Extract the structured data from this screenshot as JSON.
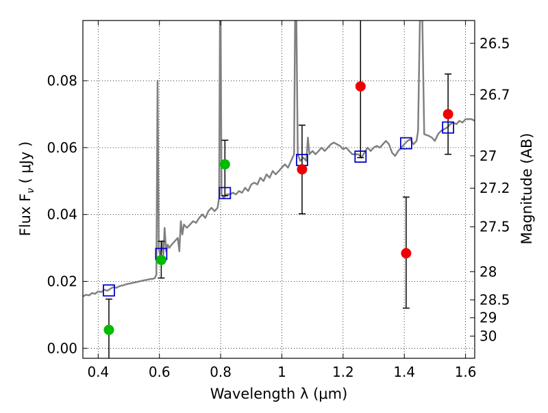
{
  "chart_data": {
    "type": "scatter",
    "xlabel": "Wavelength  λ (μm)",
    "ylabel": "Flux  F",
    "ylabel_sub": "ν",
    "ylabel_unit": " ( μJy )",
    "y2label": "Magnitude (AB)",
    "xlim": [
      0.35,
      1.63
    ],
    "ylim": [
      -0.003,
      0.098
    ],
    "grid": true,
    "x_ticks": [
      {
        "value": 0.4,
        "label": "0.4"
      },
      {
        "value": 0.6,
        "label": "0.6"
      },
      {
        "value": 0.8,
        "label": "0.8"
      },
      {
        "value": 1.0,
        "label": "1"
      },
      {
        "value": 1.2,
        "label": "1.2"
      },
      {
        "value": 1.4,
        "label": "1.4"
      },
      {
        "value": 1.6,
        "label": "1.6"
      }
    ],
    "y_ticks": [
      {
        "value": 0.0,
        "label": "0.00"
      },
      {
        "value": 0.02,
        "label": "0.02"
      },
      {
        "value": 0.04,
        "label": "0.04"
      },
      {
        "value": 0.06,
        "label": "0.06"
      },
      {
        "value": 0.08,
        "label": "0.08"
      }
    ],
    "y2_ticks": [
      {
        "mag": 26.5,
        "label": "26.5"
      },
      {
        "mag": 26.7,
        "label": "26.7"
      },
      {
        "mag": 27.0,
        "label": "27"
      },
      {
        "mag": 27.2,
        "label": "27.2"
      },
      {
        "mag": 27.5,
        "label": "27.5"
      },
      {
        "mag": 28.0,
        "label": "28"
      },
      {
        "mag": 28.5,
        "label": "28.5"
      },
      {
        "mag": 29.0,
        "label": "29"
      },
      {
        "mag": 30.0,
        "label": "30"
      }
    ],
    "model_spectrum": {
      "color": "#808080",
      "points": [
        [
          0.35,
          0.0155
        ],
        [
          0.36,
          0.016
        ],
        [
          0.37,
          0.0158
        ],
        [
          0.38,
          0.0165
        ],
        [
          0.39,
          0.0163
        ],
        [
          0.4,
          0.017
        ],
        [
          0.41,
          0.0168
        ],
        [
          0.42,
          0.0175
        ],
        [
          0.43,
          0.0172
        ],
        [
          0.44,
          0.0178
        ],
        [
          0.45,
          0.0183
        ],
        [
          0.46,
          0.0181
        ],
        [
          0.47,
          0.0186
        ],
        [
          0.48,
          0.0188
        ],
        [
          0.49,
          0.0191
        ],
        [
          0.5,
          0.0193
        ],
        [
          0.51,
          0.0195
        ],
        [
          0.52,
          0.0197
        ],
        [
          0.53,
          0.0199
        ],
        [
          0.54,
          0.0201
        ],
        [
          0.55,
          0.0203
        ],
        [
          0.56,
          0.0205
        ],
        [
          0.57,
          0.0207
        ],
        [
          0.58,
          0.0208
        ],
        [
          0.585,
          0.021
        ],
        [
          0.59,
          0.022
        ],
        [
          0.594,
          0.08
        ],
        [
          0.598,
          0.03
        ],
        [
          0.603,
          0.027
        ],
        [
          0.608,
          0.032
        ],
        [
          0.613,
          0.028
        ],
        [
          0.617,
          0.036
        ],
        [
          0.622,
          0.029
        ],
        [
          0.627,
          0.031
        ],
        [
          0.632,
          0.03
        ],
        [
          0.64,
          0.031
        ],
        [
          0.65,
          0.032
        ],
        [
          0.66,
          0.033
        ],
        [
          0.665,
          0.029
        ],
        [
          0.67,
          0.038
        ],
        [
          0.675,
          0.034
        ],
        [
          0.68,
          0.037
        ],
        [
          0.69,
          0.036
        ],
        [
          0.7,
          0.037
        ],
        [
          0.71,
          0.038
        ],
        [
          0.72,
          0.0375
        ],
        [
          0.73,
          0.039
        ],
        [
          0.74,
          0.04
        ],
        [
          0.75,
          0.039
        ],
        [
          0.76,
          0.041
        ],
        [
          0.77,
          0.042
        ],
        [
          0.78,
          0.041
        ],
        [
          0.79,
          0.042
        ],
        [
          0.795,
          0.045
        ],
        [
          0.799,
          0.12
        ],
        [
          0.803,
          0.046
        ],
        [
          0.81,
          0.045
        ],
        [
          0.82,
          0.046
        ],
        [
          0.83,
          0.046
        ],
        [
          0.84,
          0.0465
        ],
        [
          0.85,
          0.046
        ],
        [
          0.86,
          0.047
        ],
        [
          0.87,
          0.0465
        ],
        [
          0.88,
          0.048
        ],
        [
          0.89,
          0.047
        ],
        [
          0.9,
          0.049
        ],
        [
          0.91,
          0.0495
        ],
        [
          0.92,
          0.049
        ],
        [
          0.93,
          0.051
        ],
        [
          0.94,
          0.05
        ],
        [
          0.95,
          0.052
        ],
        [
          0.96,
          0.051
        ],
        [
          0.97,
          0.053
        ],
        [
          0.98,
          0.052
        ],
        [
          0.99,
          0.053
        ],
        [
          1.0,
          0.054
        ],
        [
          1.01,
          0.055
        ],
        [
          1.02,
          0.054
        ],
        [
          1.03,
          0.056
        ],
        [
          1.04,
          0.058
        ],
        [
          1.045,
          0.12
        ],
        [
          1.052,
          0.058
        ],
        [
          1.06,
          0.056
        ],
        [
          1.07,
          0.057
        ],
        [
          1.08,
          0.056
        ],
        [
          1.085,
          0.063
        ],
        [
          1.09,
          0.058
        ],
        [
          1.1,
          0.059
        ],
        [
          1.11,
          0.058
        ],
        [
          1.12,
          0.059
        ],
        [
          1.13,
          0.06
        ],
        [
          1.14,
          0.059
        ],
        [
          1.15,
          0.06
        ],
        [
          1.16,
          0.061
        ],
        [
          1.17,
          0.0615
        ],
        [
          1.18,
          0.061
        ],
        [
          1.19,
          0.0605
        ],
        [
          1.2,
          0.0595
        ],
        [
          1.21,
          0.06
        ],
        [
          1.22,
          0.059
        ],
        [
          1.23,
          0.058
        ],
        [
          1.24,
          0.058
        ],
        [
          1.25,
          0.058
        ],
        [
          1.26,
          0.057
        ],
        [
          1.27,
          0.0585
        ],
        [
          1.28,
          0.06
        ],
        [
          1.29,
          0.059
        ],
        [
          1.3,
          0.06
        ],
        [
          1.31,
          0.0605
        ],
        [
          1.32,
          0.06
        ],
        [
          1.33,
          0.061
        ],
        [
          1.34,
          0.062
        ],
        [
          1.35,
          0.061
        ],
        [
          1.36,
          0.0585
        ],
        [
          1.37,
          0.0575
        ],
        [
          1.38,
          0.059
        ],
        [
          1.39,
          0.06
        ],
        [
          1.4,
          0.061
        ],
        [
          1.41,
          0.062
        ],
        [
          1.42,
          0.0625
        ],
        [
          1.43,
          0.061
        ],
        [
          1.44,
          0.062
        ],
        [
          1.445,
          0.065
        ],
        [
          1.455,
          0.12
        ],
        [
          1.465,
          0.064
        ],
        [
          1.48,
          0.0635
        ],
        [
          1.49,
          0.063
        ],
        [
          1.5,
          0.062
        ],
        [
          1.51,
          0.064
        ],
        [
          1.52,
          0.065
        ],
        [
          1.53,
          0.0655
        ],
        [
          1.54,
          0.066
        ],
        [
          1.55,
          0.067
        ],
        [
          1.56,
          0.0675
        ],
        [
          1.57,
          0.067
        ],
        [
          1.58,
          0.068
        ],
        [
          1.59,
          0.0675
        ],
        [
          1.6,
          0.0685
        ],
        [
          1.61,
          0.0685
        ],
        [
          1.62,
          0.0685
        ],
        [
          1.63,
          0.068
        ]
      ]
    },
    "model_photometry": {
      "marker": "square",
      "color": "#0000cc",
      "points": [
        {
          "x": 0.435,
          "y": 0.0173
        },
        {
          "x": 0.606,
          "y": 0.0282
        },
        {
          "x": 0.814,
          "y": 0.0464
        },
        {
          "x": 1.066,
          "y": 0.0563
        },
        {
          "x": 1.257,
          "y": 0.0573
        },
        {
          "x": 1.406,
          "y": 0.0613
        },
        {
          "x": 1.543,
          "y": 0.066
        }
      ]
    },
    "observed_green": {
      "marker": "circle",
      "color": "#00bb00",
      "points": [
        {
          "x": 0.435,
          "y": 0.0055,
          "yerr_low": 0.0055,
          "yerr_high": 0.0092,
          "lower_open": true
        },
        {
          "x": 0.606,
          "y": 0.0264,
          "yerr_low": 0.0054,
          "yerr_high": 0.0056
        },
        {
          "x": 0.814,
          "y": 0.055,
          "yerr_low": 0.0094,
          "yerr_high": 0.0072
        }
      ]
    },
    "observed_red": {
      "marker": "circle",
      "color": "#ee0000",
      "points": [
        {
          "x": 1.066,
          "y": 0.0535,
          "yerr_low": 0.0133,
          "yerr_high": 0.0132
        },
        {
          "x": 1.257,
          "y": 0.0783,
          "yerr_low": 0.0213,
          "yerr_high": 0.02,
          "upper_open": true
        },
        {
          "x": 1.406,
          "y": 0.0284,
          "yerr_low": 0.0164,
          "yerr_high": 0.0168
        },
        {
          "x": 1.543,
          "y": 0.07,
          "yerr_low": 0.012,
          "yerr_high": 0.012
        }
      ]
    }
  }
}
